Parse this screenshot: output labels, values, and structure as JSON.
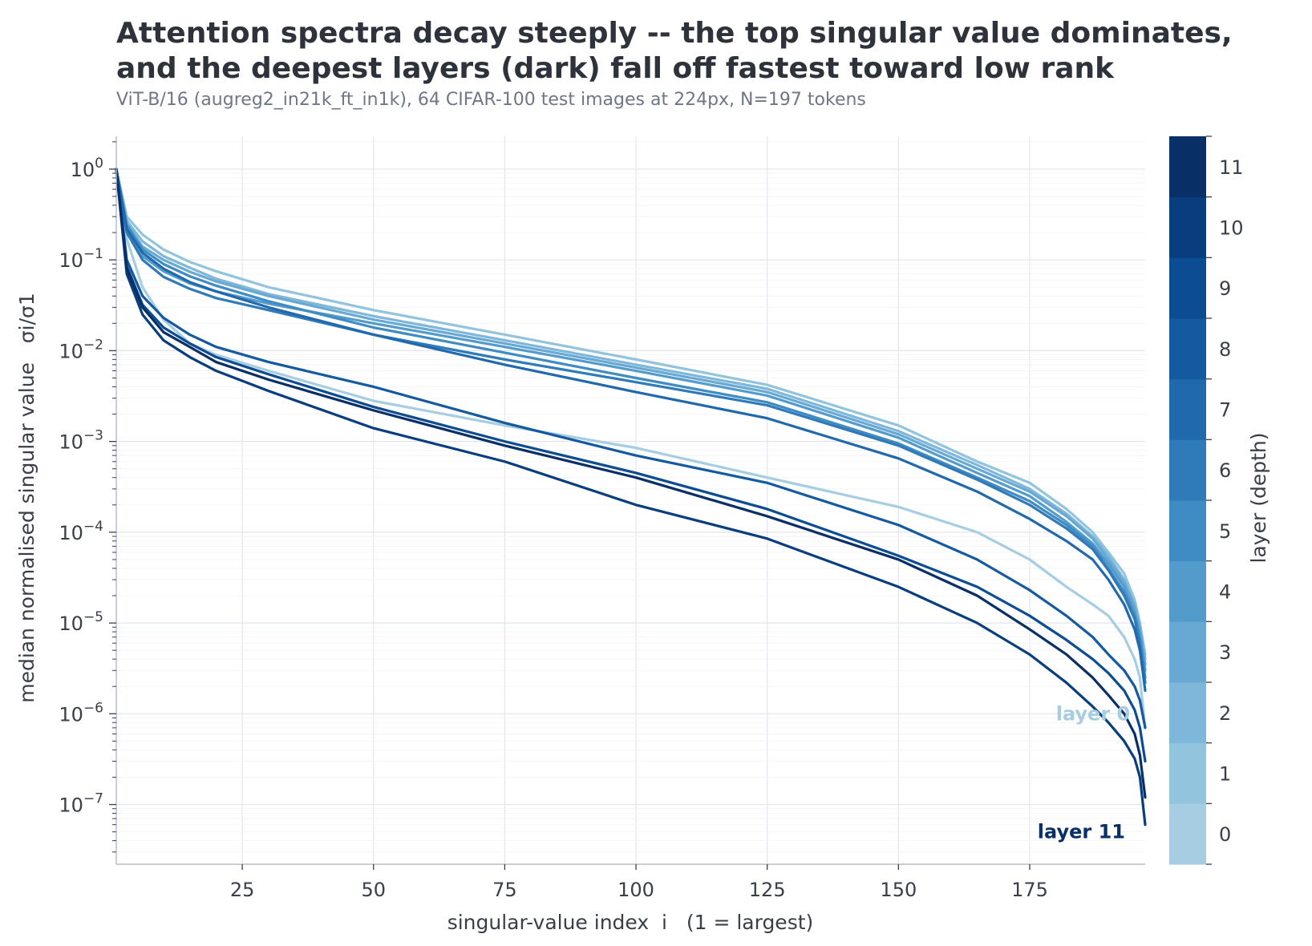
{
  "title_line1": "Attention spectra decay steeply -- the top singular value dominates,",
  "title_line2": "and the deepest layers (dark) fall off fastest toward low rank",
  "subtitle": "ViT-B/16 (augreg2_in21k_ft_in1k), 64 CIFAR-100 test images at 224px, N=197 tokens",
  "chart_data": {
    "type": "line",
    "xlabel": "singular-value index  i   (1 = largest)",
    "ylabel": "median normalised singular value   σi/σ1",
    "y_scale": "log",
    "xlim": [
      1,
      197
    ],
    "ylim": [
      2.2e-08,
      2.3
    ],
    "x_ticks": [
      25,
      50,
      75,
      100,
      125,
      150,
      175
    ],
    "y_ticks": [
      {
        "base": "10",
        "exp": "0",
        "value": 1
      },
      {
        "base": "10",
        "exp": "−1",
        "value": 0.1
      },
      {
        "base": "10",
        "exp": "−2",
        "value": 0.01
      },
      {
        "base": "10",
        "exp": "−3",
        "value": 0.001
      },
      {
        "base": "10",
        "exp": "−4",
        "value": 0.0001
      },
      {
        "base": "10",
        "exp": "−5",
        "value": 1e-05
      },
      {
        "base": "10",
        "exp": "−6",
        "value": 1e-06
      },
      {
        "base": "10",
        "exp": "−7",
        "value": 1e-07
      }
    ],
    "grid": true,
    "colorbar": {
      "label": "layer (depth)",
      "ticks": [
        "0",
        "1",
        "2",
        "3",
        "4",
        "5",
        "6",
        "7",
        "8",
        "9",
        "10",
        "11"
      ],
      "colors": [
        "#a6cde2",
        "#93c4de",
        "#7eb7da",
        "#68a9d4",
        "#539bcb",
        "#3f8bc3",
        "#2f7bb9",
        "#2169ad",
        "#145aa0",
        "#0b4c92",
        "#083e7e",
        "#082f66"
      ]
    },
    "annotations": [
      {
        "text": "layer 0",
        "layer": 0,
        "x": 180,
        "y": 1e-06
      },
      {
        "text": "layer 11",
        "layer": 11,
        "x": 176.5,
        "y": 5e-08
      }
    ],
    "series": [
      {
        "layer": 0,
        "x": [
          1,
          3,
          6,
          10,
          15,
          20,
          30,
          50,
          75,
          100,
          125,
          150,
          165,
          175,
          182,
          187,
          190,
          193,
          195,
          196,
          197
        ],
        "y": [
          1,
          0.17,
          0.05,
          0.022,
          0.012,
          0.009,
          0.006,
          0.0028,
          0.0015,
          0.00085,
          0.0004,
          0.00019,
          0.0001,
          5e-05,
          2.5e-05,
          1.6e-05,
          1.2e-05,
          7e-06,
          4e-06,
          2.5e-06,
          7e-07
        ]
      },
      {
        "layer": 1,
        "x": [
          1,
          3,
          6,
          10,
          15,
          20,
          30,
          50,
          75,
          100,
          125,
          150,
          165,
          175,
          182,
          187,
          190,
          193,
          195,
          196,
          197
        ],
        "y": [
          1,
          0.3,
          0.19,
          0.13,
          0.095,
          0.075,
          0.05,
          0.028,
          0.015,
          0.008,
          0.0042,
          0.0015,
          0.0006,
          0.00035,
          0.00018,
          0.0001,
          6e-05,
          3.5e-05,
          1.8e-05,
          1e-05,
          4.5e-06
        ]
      },
      {
        "layer": 2,
        "x": [
          1,
          3,
          6,
          10,
          15,
          20,
          30,
          50,
          75,
          100,
          125,
          150,
          165,
          175,
          182,
          187,
          190,
          193,
          195,
          196,
          197
        ],
        "y": [
          1,
          0.27,
          0.16,
          0.11,
          0.082,
          0.062,
          0.042,
          0.024,
          0.013,
          0.007,
          0.0038,
          0.0013,
          0.00055,
          0.0003,
          0.00016,
          9e-05,
          5.5e-05,
          3e-05,
          1.6e-05,
          9e-06,
          4e-06
        ]
      },
      {
        "layer": 3,
        "x": [
          1,
          3,
          6,
          10,
          15,
          20,
          30,
          50,
          75,
          100,
          125,
          150,
          165,
          175,
          182,
          187,
          190,
          193,
          195,
          196,
          197
        ],
        "y": [
          1,
          0.25,
          0.14,
          0.1,
          0.074,
          0.058,
          0.04,
          0.022,
          0.012,
          0.0065,
          0.0035,
          0.0012,
          0.0005,
          0.00028,
          0.00015,
          8.5e-05,
          5e-05,
          2.8e-05,
          1.5e-05,
          8.5e-06,
          3.5e-06
        ]
      },
      {
        "layer": 4,
        "x": [
          1,
          3,
          6,
          10,
          15,
          20,
          30,
          50,
          75,
          100,
          125,
          150,
          165,
          175,
          182,
          187,
          190,
          193,
          195,
          196,
          197
        ],
        "y": [
          1,
          0.22,
          0.11,
          0.075,
          0.055,
          0.045,
          0.033,
          0.02,
          0.011,
          0.006,
          0.0032,
          0.0011,
          0.00045,
          0.00025,
          0.00013,
          7.5e-05,
          4.5e-05,
          2.5e-05,
          1.3e-05,
          7.5e-06,
          3e-06
        ]
      },
      {
        "layer": 5,
        "x": [
          1,
          3,
          6,
          10,
          15,
          20,
          30,
          50,
          75,
          100,
          125,
          150,
          165,
          175,
          182,
          187,
          190,
          193,
          195,
          196,
          197
        ],
        "y": [
          1,
          0.24,
          0.13,
          0.09,
          0.066,
          0.052,
          0.035,
          0.018,
          0.0095,
          0.005,
          0.0027,
          0.00095,
          0.0004,
          0.00022,
          0.00012,
          7e-05,
          4e-05,
          2.2e-05,
          1.2e-05,
          6.5e-06,
          2.5e-06
        ]
      },
      {
        "layer": 6,
        "x": [
          1,
          3,
          6,
          10,
          15,
          20,
          30,
          50,
          75,
          100,
          125,
          150,
          165,
          175,
          182,
          187,
          190,
          193,
          195,
          196,
          197
        ],
        "y": [
          1,
          0.2,
          0.1,
          0.065,
          0.048,
          0.038,
          0.028,
          0.015,
          0.008,
          0.0045,
          0.0025,
          0.0009,
          0.00038,
          0.0002,
          0.00011,
          6.5e-05,
          3.8e-05,
          2e-05,
          1.1e-05,
          6e-06,
          2.2e-06
        ]
      },
      {
        "layer": 7,
        "x": [
          1,
          3,
          6,
          10,
          15,
          20,
          30,
          50,
          75,
          100,
          125,
          150,
          165,
          175,
          182,
          187,
          190,
          193,
          195,
          196,
          197
        ],
        "y": [
          1,
          0.22,
          0.12,
          0.08,
          0.057,
          0.045,
          0.03,
          0.015,
          0.007,
          0.0035,
          0.0018,
          0.00065,
          0.00028,
          0.00014,
          8e-05,
          5e-05,
          3e-05,
          1.6e-05,
          8.5e-06,
          5e-06,
          1.8e-06
        ]
      },
      {
        "layer": 8,
        "x": [
          1,
          3,
          6,
          10,
          15,
          20,
          30,
          50,
          75,
          100,
          125,
          150,
          165,
          175,
          182,
          187,
          190,
          193,
          195,
          196,
          197
        ],
        "y": [
          1,
          0.1,
          0.04,
          0.023,
          0.015,
          0.011,
          0.0075,
          0.004,
          0.0016,
          0.0007,
          0.00035,
          0.00012,
          5e-05,
          2.3e-05,
          1.2e-05,
          7e-06,
          4.5e-06,
          3e-06,
          2e-06,
          1.4e-06,
          7e-07
        ]
      },
      {
        "layer": 9,
        "x": [
          1,
          3,
          6,
          10,
          15,
          20,
          30,
          50,
          75,
          100,
          125,
          150,
          165,
          175,
          182,
          187,
          190,
          193,
          195,
          196,
          197
        ],
        "y": [
          1,
          0.085,
          0.032,
          0.018,
          0.012,
          0.0085,
          0.0055,
          0.0024,
          0.001,
          0.00045,
          0.00018,
          5.5e-05,
          2.5e-05,
          1.2e-05,
          6.5e-06,
          4e-06,
          2.8e-06,
          1.8e-06,
          1.1e-06,
          7e-07,
          3e-07
        ]
      },
      {
        "layer": 10,
        "x": [
          1,
          3,
          6,
          10,
          15,
          20,
          30,
          50,
          75,
          100,
          125,
          150,
          165,
          175,
          182,
          187,
          190,
          193,
          195,
          196,
          197
        ],
        "y": [
          1,
          0.07,
          0.025,
          0.013,
          0.0085,
          0.006,
          0.0036,
          0.0014,
          0.0006,
          0.0002,
          8.5e-05,
          2.5e-05,
          1e-05,
          4.5e-06,
          2.2e-06,
          1.2e-06,
          8e-07,
          5e-07,
          3.2e-07,
          2e-07,
          6e-08
        ]
      },
      {
        "layer": 11,
        "x": [
          1,
          3,
          6,
          10,
          15,
          20,
          30,
          50,
          75,
          100,
          125,
          150,
          165,
          175,
          182,
          187,
          190,
          193,
          195,
          196,
          197
        ],
        "y": [
          1,
          0.08,
          0.03,
          0.016,
          0.011,
          0.0075,
          0.0048,
          0.0022,
          0.0009,
          0.0004,
          0.00015,
          5e-05,
          2e-05,
          8.5e-06,
          4.5e-06,
          2.5e-06,
          1.6e-06,
          1e-06,
          6e-07,
          3.5e-07,
          1.2e-07
        ]
      }
    ]
  }
}
